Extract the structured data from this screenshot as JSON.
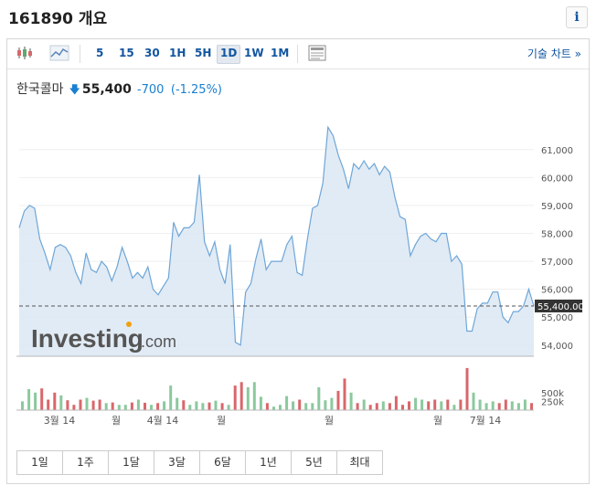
{
  "header": {
    "title": "161890 개요",
    "info_icon": "i"
  },
  "toolbar": {
    "timeframes": [
      "5",
      "15",
      "30",
      "1H",
      "5H",
      "1D",
      "1W",
      "1M"
    ],
    "active_timeframe": "1D",
    "technical_chart_label": "기술 차트 »"
  },
  "quote": {
    "name": "한국콜마",
    "price": "55,400",
    "change": "-700",
    "change_pct": "(-1.25%)",
    "direction": "down",
    "color": "#1a7fd0"
  },
  "watermark": {
    "brand": "Investing",
    "suffix": ".com"
  },
  "chart_data": {
    "type": "line",
    "series": [
      {
        "values": [
          58200,
          58800,
          59000,
          58900,
          57800,
          57300,
          56700,
          57500,
          57600,
          57500,
          57200,
          56600,
          56200,
          57300,
          56700,
          56600,
          57000,
          56800,
          56300,
          56800,
          57500,
          57000,
          56400,
          56600,
          56400,
          56800,
          56000,
          55800,
          56100,
          56400,
          58400,
          57900,
          58200,
          58200,
          58400,
          60100,
          57700,
          57200,
          57700,
          56700,
          56200,
          57600,
          54100,
          54000,
          55900,
          56200,
          57100,
          57800,
          56700,
          57000,
          57000,
          57000,
          57600,
          57900,
          56600,
          56500,
          57800,
          58900,
          59000,
          59800,
          61800,
          61500,
          60800,
          60300,
          59600,
          60500,
          60300,
          60600,
          60300,
          60500,
          60100,
          60400,
          60200,
          59300,
          58600,
          58500,
          57200,
          57600,
          57900,
          58000,
          57800,
          57700,
          58000,
          58000,
          57000,
          57200,
          56900,
          54500,
          54500,
          55300,
          55500,
          55500,
          55900,
          55900,
          55000,
          54800,
          55200,
          55200,
          55400,
          56000,
          55400
        ]
      }
    ],
    "x_ticks": [
      "3월 14",
      "월",
      "4월 14",
      "월",
      "월",
      "월",
      "7월 14"
    ],
    "y_ticks": [
      "61,000",
      "60,000",
      "59,000",
      "58,000",
      "57,000",
      "56,000",
      "55,000",
      "54,000"
    ],
    "ylim": [
      53600,
      62400
    ],
    "current_label": "55,400.00",
    "current_value": 55400,
    "volume": {
      "values": [
        250,
        600,
        500,
        620,
        300,
        500,
        420,
        280,
        150,
        300,
        350,
        270,
        300,
        200,
        220,
        150,
        150,
        220,
        300,
        210,
        150,
        200,
        250,
        700,
        350,
        280,
        150,
        250,
        200,
        220,
        270,
        200,
        150,
        700,
        800,
        650,
        800,
        380,
        200,
        100,
        150,
        400,
        250,
        300,
        200,
        200,
        650,
        280,
        350,
        550,
        900,
        500,
        200,
        300,
        150,
        200,
        250,
        200,
        400,
        150,
        250,
        350,
        300,
        250,
        300,
        250,
        300,
        150,
        300,
        1200,
        500,
        300,
        200,
        250,
        200,
        300,
        250,
        200,
        300,
        200
      ],
      "ticks": [
        "500k",
        "250k"
      ],
      "max": 1250
    },
    "bar_colors": {
      "up": "#8bc99d",
      "down": "#d9676b"
    },
    "grid": true
  },
  "ranges": [
    "1일",
    "1주",
    "1달",
    "3달",
    "6달",
    "1년",
    "5년",
    "최대"
  ]
}
